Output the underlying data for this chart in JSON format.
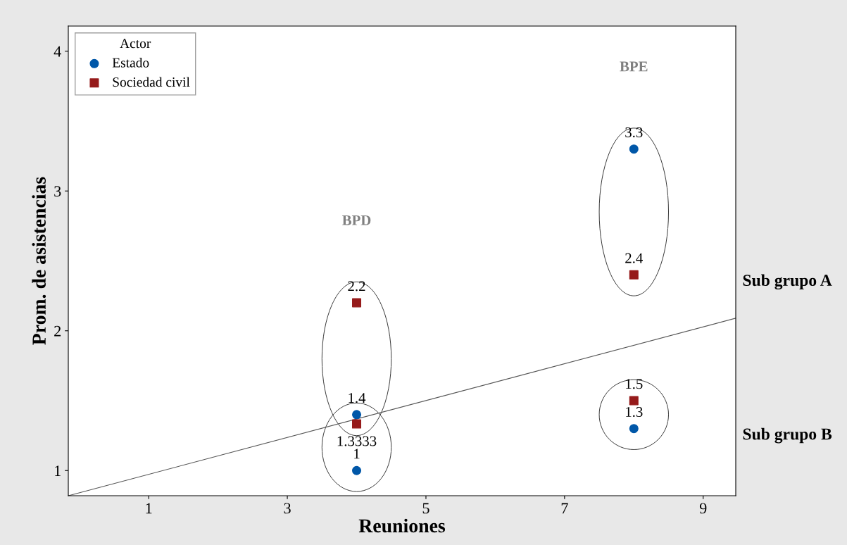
{
  "chart_data": {
    "type": "scatter",
    "xlabel": "Reuniones",
    "ylabel": "Prom. de asistencias",
    "legend_title": "Actor",
    "legend": "top left",
    "grid": false,
    "xlim": [
      -0.16,
      9.47
    ],
    "ylim": [
      0.82,
      4.18
    ],
    "xticks": [
      1,
      3,
      5,
      7,
      9
    ],
    "yticks": [
      1,
      2,
      3,
      4
    ],
    "series": [
      {
        "name": "Estado",
        "color": "#0057a8",
        "marker": "circle",
        "x": [
          4,
          4,
          8,
          8
        ],
        "values": [
          1.4,
          1,
          3.3,
          1.3
        ],
        "value_labels": [
          "1.4",
          "1",
          "3.3",
          "1.3"
        ]
      },
      {
        "name": "Sociedad civil",
        "color": "#961b1b",
        "marker": "square",
        "x": [
          4,
          4,
          8,
          8
        ],
        "values": [
          2.2,
          1.3333,
          2.4,
          1.5
        ],
        "value_labels": [
          "2.2",
          "1.3333",
          "2.4",
          "1.5"
        ]
      },
      {
        "type": "line",
        "color": "#555555",
        "x": [
          -0.16,
          9.47
        ],
        "values": [
          0.82,
          2.09
        ]
      }
    ],
    "annotations": [
      "BPD",
      "BPE",
      "Sub grupo A",
      "Sub grupo B"
    ]
  }
}
